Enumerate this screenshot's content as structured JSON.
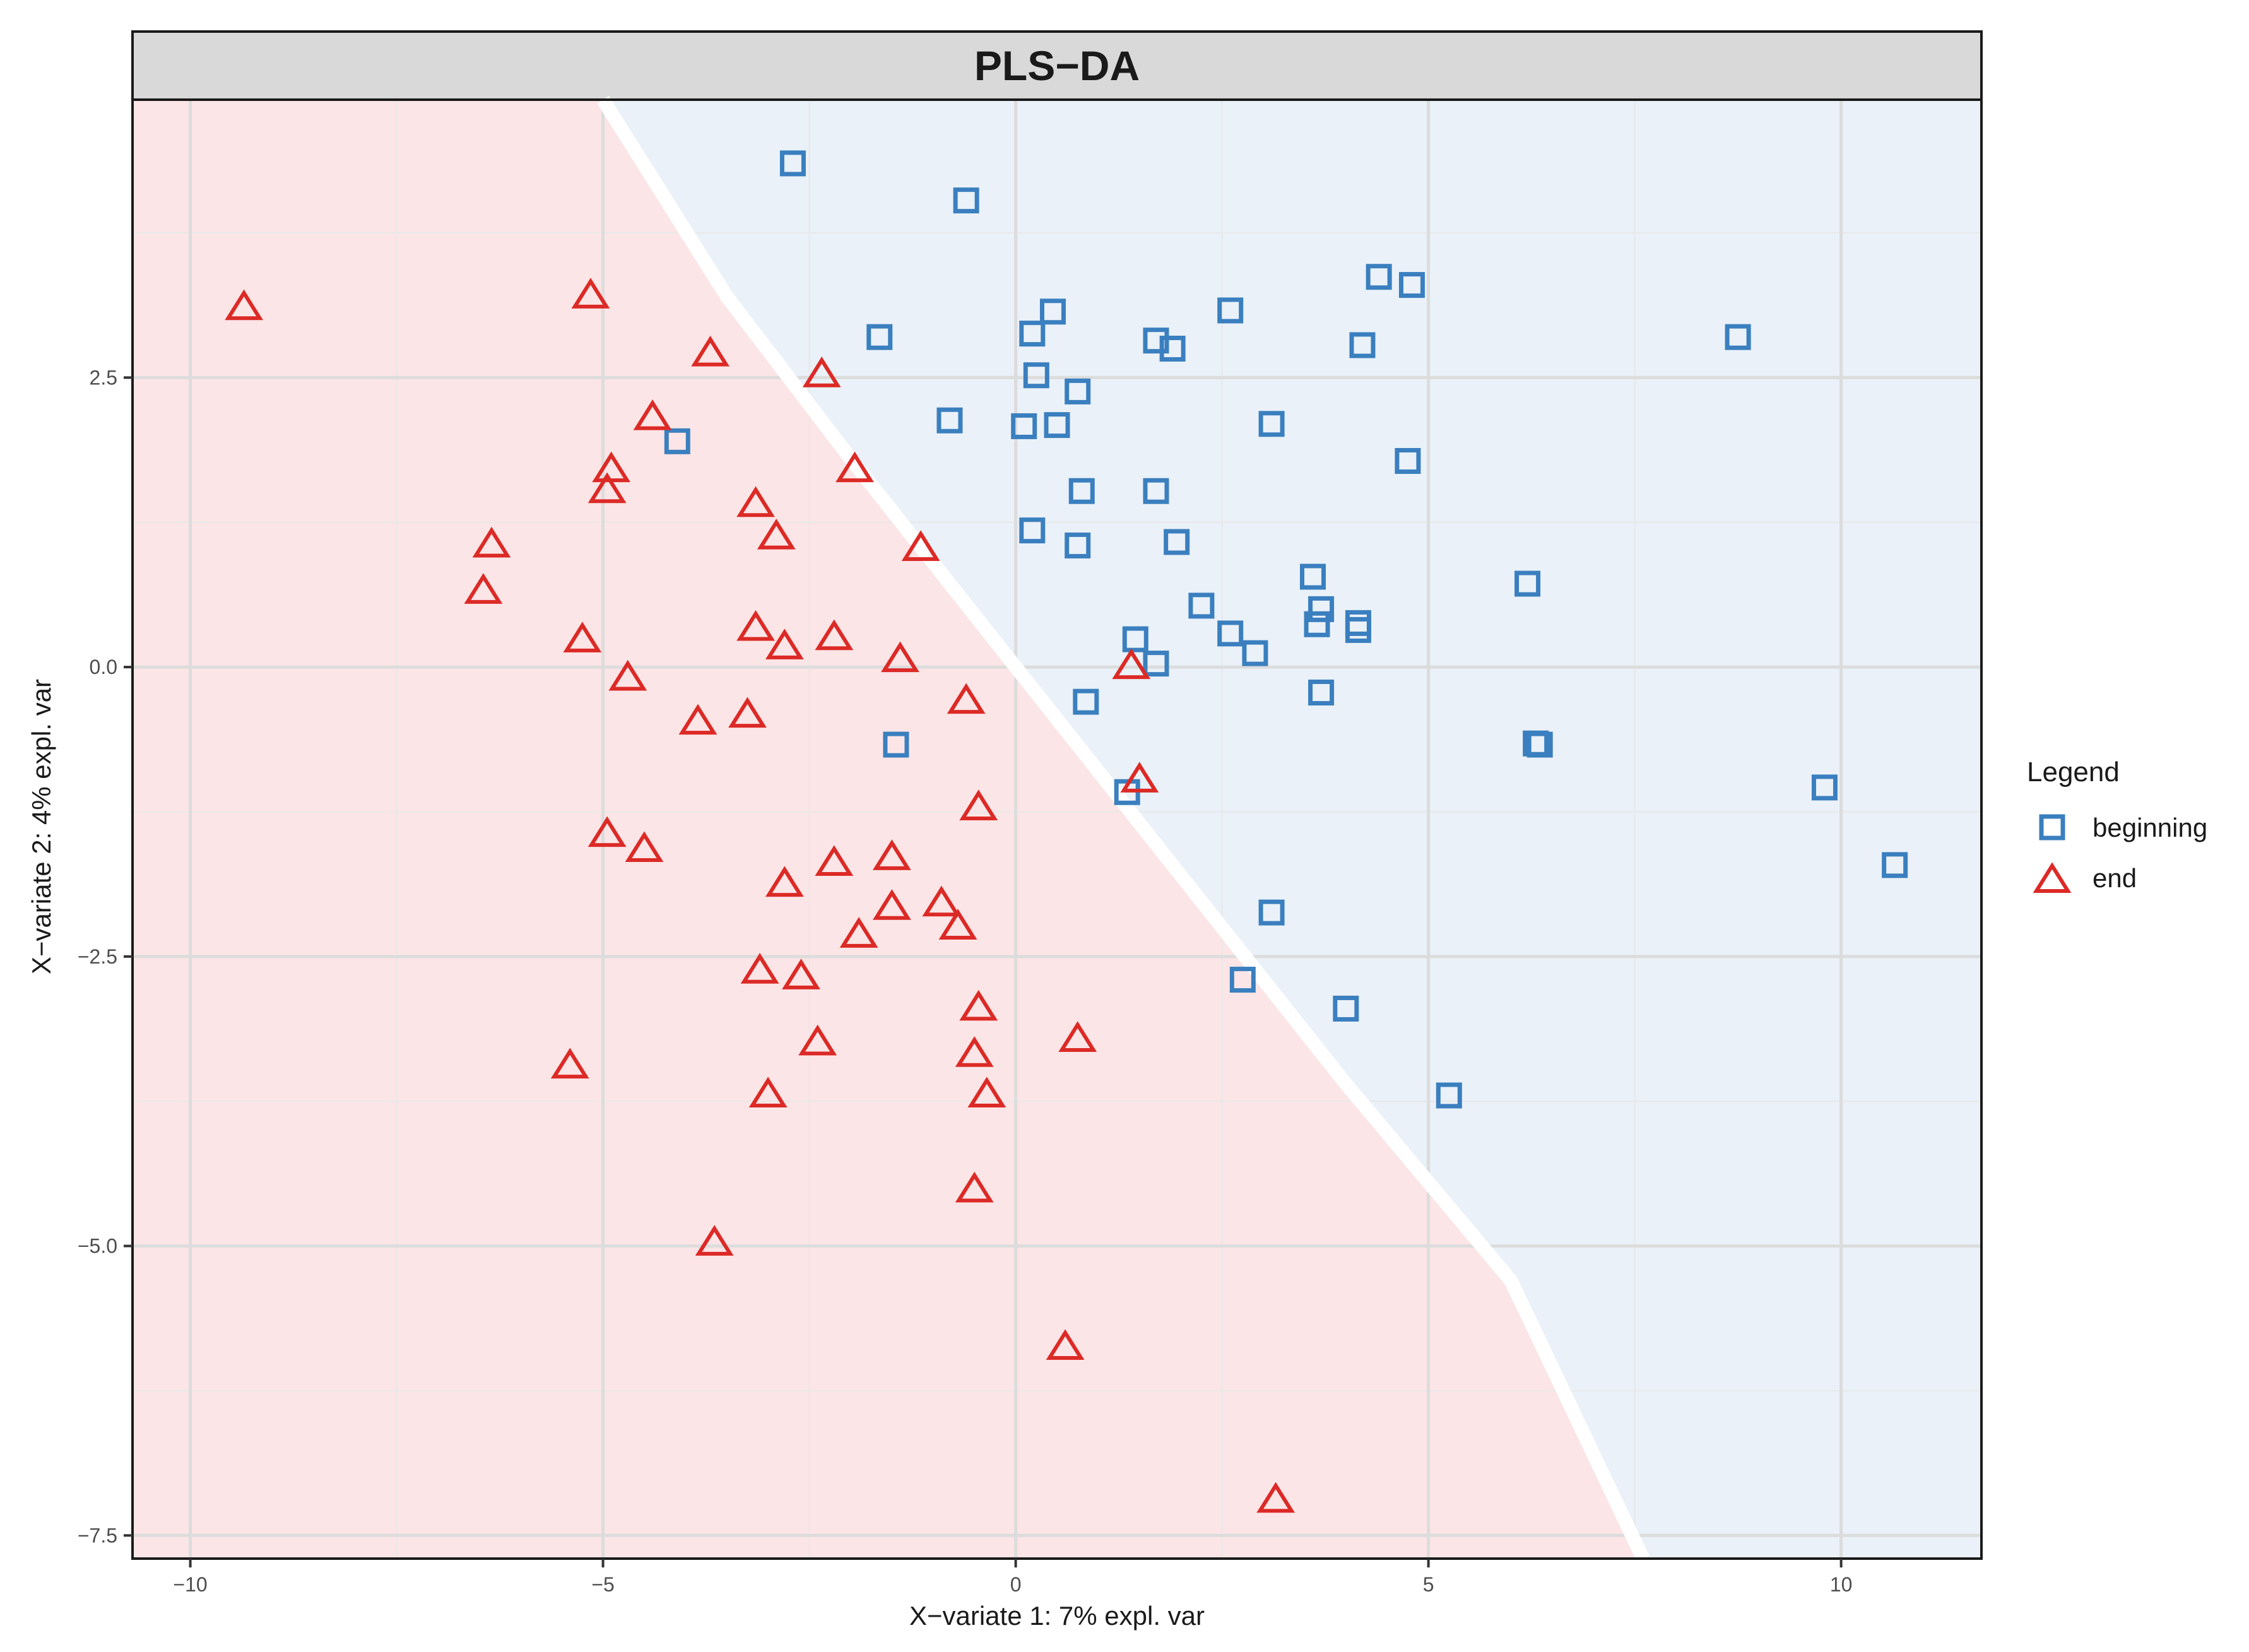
{
  "chart_data": {
    "type": "scatter",
    "title": "PLS−DA",
    "xlabel": "X−variate 1: 7% expl. var",
    "ylabel": "X−variate 2: 4% expl. var",
    "xlim": [
      -10.7,
      11.7
    ],
    "ylim": [
      -7.7,
      4.9
    ],
    "x_ticks": [
      -10,
      -5,
      0,
      5,
      10
    ],
    "x_tick_labels": [
      "−10",
      "−5",
      "0",
      "5",
      "10"
    ],
    "y_ticks": [
      2.5,
      0,
      -2.5,
      -5,
      -7.5
    ],
    "y_tick_labels": [
      "2.5",
      "0.0",
      "−2.5",
      "−5.0",
      "−7.5"
    ],
    "grid": true,
    "background_regions": {
      "beginning_color": "#eaf1f8",
      "end_color": "#fce5e6",
      "boundary": [
        [
          -5.0,
          4.9
        ],
        [
          -3.5,
          3.2
        ],
        [
          -2.0,
          1.8
        ],
        [
          0.0,
          0.0
        ],
        [
          2.0,
          -1.8
        ],
        [
          4.0,
          -3.6
        ],
        [
          6.0,
          -5.3
        ],
        [
          7.6,
          -7.7
        ]
      ]
    },
    "legend": {
      "title": "Legend",
      "position": "right",
      "entries": [
        {
          "label": "beginning",
          "shape": "square",
          "color": "#3a7fbf"
        },
        {
          "label": "end",
          "shape": "triangle",
          "color": "#dc2a26"
        }
      ]
    },
    "series": [
      {
        "name": "beginning",
        "shape": "square",
        "color": "#3a7fbf",
        "points": [
          [
            -2.7,
            4.35
          ],
          [
            -0.6,
            4.03
          ],
          [
            4.4,
            3.37
          ],
          [
            4.8,
            3.3
          ],
          [
            2.6,
            3.08
          ],
          [
            0.45,
            3.07
          ],
          [
            0.2,
            2.88
          ],
          [
            -1.65,
            2.85
          ],
          [
            1.7,
            2.82
          ],
          [
            1.9,
            2.75
          ],
          [
            4.2,
            2.78
          ],
          [
            8.75,
            2.85
          ],
          [
            0.25,
            2.52
          ],
          [
            0.75,
            2.38
          ],
          [
            -0.8,
            2.13
          ],
          [
            0.1,
            2.08
          ],
          [
            0.5,
            2.09
          ],
          [
            3.1,
            2.1
          ],
          [
            -4.1,
            1.95
          ],
          [
            4.75,
            1.78
          ],
          [
            0.8,
            1.52
          ],
          [
            1.7,
            1.52
          ],
          [
            0.2,
            1.18
          ],
          [
            0.75,
            1.05
          ],
          [
            1.95,
            1.08
          ],
          [
            3.6,
            0.78
          ],
          [
            6.2,
            0.72
          ],
          [
            2.25,
            0.53
          ],
          [
            3.7,
            0.5
          ],
          [
            3.65,
            0.37
          ],
          [
            4.15,
            0.38
          ],
          [
            4.15,
            0.32
          ],
          [
            2.6,
            0.29
          ],
          [
            1.45,
            0.24
          ],
          [
            2.9,
            0.12
          ],
          [
            1.7,
            0.03
          ],
          [
            3.7,
            -0.22
          ],
          [
            0.85,
            -0.3
          ],
          [
            -1.45,
            -0.67
          ],
          [
            6.3,
            -0.66
          ],
          [
            6.35,
            -0.67
          ],
          [
            1.35,
            -1.08
          ],
          [
            9.8,
            -1.04
          ],
          [
            10.65,
            -1.71
          ],
          [
            3.1,
            -2.12
          ],
          [
            2.75,
            -2.7
          ],
          [
            4.0,
            -2.95
          ],
          [
            5.25,
            -3.7
          ]
        ]
      },
      {
        "name": "end",
        "shape": "triangle",
        "color": "#dc2a26",
        "points": [
          [
            -9.35,
            3.1
          ],
          [
            -5.15,
            3.2
          ],
          [
            -3.7,
            2.7
          ],
          [
            -2.35,
            2.52
          ],
          [
            -4.4,
            2.15
          ],
          [
            -4.9,
            1.7
          ],
          [
            -1.95,
            1.7
          ],
          [
            -4.95,
            1.52
          ],
          [
            -3.15,
            1.4
          ],
          [
            -2.9,
            1.12
          ],
          [
            -1.15,
            1.02
          ],
          [
            -6.35,
            1.05
          ],
          [
            -6.45,
            0.65
          ],
          [
            -3.15,
            0.33
          ],
          [
            -5.25,
            0.23
          ],
          [
            -2.2,
            0.25
          ],
          [
            -2.8,
            0.17
          ],
          [
            -1.4,
            0.06
          ],
          [
            1.4,
            0.0
          ],
          [
            -4.7,
            -0.1
          ],
          [
            -0.6,
            -0.3
          ],
          [
            -3.25,
            -0.42
          ],
          [
            -3.85,
            -0.48
          ],
          [
            1.5,
            -0.98
          ],
          [
            -0.45,
            -1.22
          ],
          [
            -4.95,
            -1.45
          ],
          [
            -4.5,
            -1.58
          ],
          [
            -1.5,
            -1.65
          ],
          [
            -2.2,
            -1.7
          ],
          [
            -2.8,
            -1.88
          ],
          [
            -1.5,
            -2.08
          ],
          [
            -0.9,
            -2.05
          ],
          [
            -0.7,
            -2.25
          ],
          [
            -1.9,
            -2.32
          ],
          [
            -3.1,
            -2.63
          ],
          [
            -2.6,
            -2.68
          ],
          [
            -0.45,
            -2.95
          ],
          [
            -2.4,
            -3.25
          ],
          [
            0.75,
            -3.22
          ],
          [
            -0.5,
            -3.35
          ],
          [
            -5.4,
            -3.45
          ],
          [
            -3.0,
            -3.7
          ],
          [
            -0.35,
            -3.7
          ],
          [
            -0.5,
            -4.52
          ],
          [
            -3.65,
            -4.98
          ],
          [
            0.6,
            -5.88
          ],
          [
            3.15,
            -7.2
          ]
        ]
      }
    ]
  }
}
